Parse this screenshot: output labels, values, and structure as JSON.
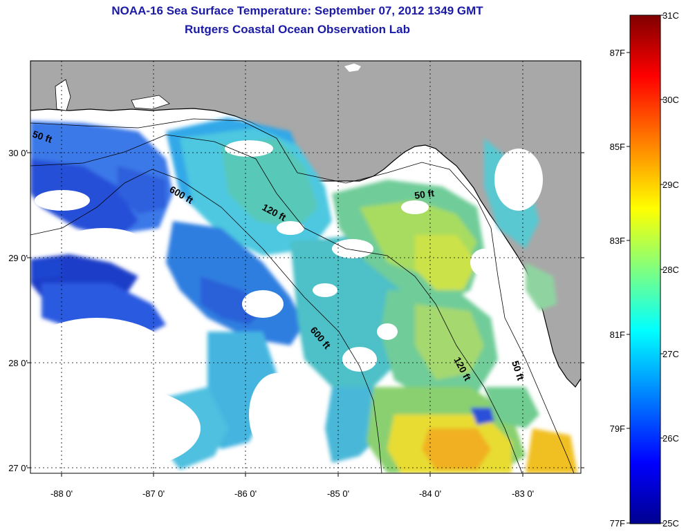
{
  "header": {
    "title": "NOAA-16 Sea Surface Temperature:  September 07, 2012 1349 GMT",
    "subtitle": "Rutgers Coastal Ocean Observation Lab"
  },
  "map": {
    "lon_ticks": [
      "-88 0'",
      "-87 0'",
      "-86 0'",
      "-85 0'",
      "-84 0'",
      "-83 0'"
    ],
    "lat_ticks": [
      "30 0'",
      "29 0'",
      "28 0'",
      "27 0'"
    ],
    "isobaths": [
      {
        "label": "50 ft",
        "id": "nw"
      },
      {
        "label": "50 ft",
        "id": "ne"
      },
      {
        "label": "50 ft",
        "id": "se"
      },
      {
        "label": "120 ft",
        "id": "n"
      },
      {
        "label": "120 ft",
        "id": "s"
      },
      {
        "label": "600 ft",
        "id": "n"
      },
      {
        "label": "600 ft",
        "id": "s"
      }
    ],
    "colors": {
      "land": "#a8a8a8",
      "nodata": "#ffffff",
      "coast": "#000000"
    }
  },
  "colorbar": {
    "celsius": [
      "31C",
      "30C",
      "29C",
      "28C",
      "27C",
      "26C",
      "25C"
    ],
    "fahrenheit": [
      "87F",
      "85F",
      "83F",
      "81F",
      "79F",
      "77F"
    ],
    "stops": [
      "#00008f",
      "#0000ff",
      "#00ffff",
      "#ffff00",
      "#ff0000",
      "#800000"
    ]
  }
}
